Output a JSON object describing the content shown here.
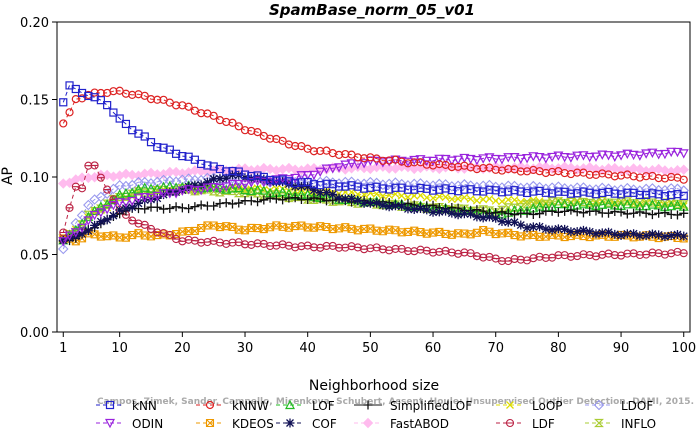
{
  "chart_data": {
    "type": "line",
    "title": "SpamBase_norm_05_v01",
    "xlabel": "Neighborhood size",
    "ylabel": "AP",
    "xlim": [
      0,
      101
    ],
    "ylim": [
      0,
      0.2
    ],
    "x_ticks": [
      1,
      10,
      20,
      30,
      40,
      50,
      60,
      70,
      80,
      90,
      100
    ],
    "y_ticks": [
      0.0,
      0.05,
      0.1,
      0.15,
      0.2
    ],
    "y_tick_labels": [
      "0.00",
      "0.05",
      "0.10",
      "0.15",
      "0.20"
    ],
    "grid": false,
    "legend_position": "bottom",
    "watermark": "Campos, Zimek, Sander, Campello, Micenkova, Schubert, Assent, Houle: Unsupervised Outlier Detection. DAMI, 2015.",
    "series": [
      {
        "name": "kNN",
        "color": "#2222cc",
        "marker": "square",
        "dash": "4,3",
        "keypoints": [
          [
            1,
            0.149
          ],
          [
            2,
            0.159
          ],
          [
            3,
            0.156
          ],
          [
            5,
            0.153
          ],
          [
            8,
            0.147
          ],
          [
            10,
            0.137
          ],
          [
            13,
            0.128
          ],
          [
            16,
            0.12
          ],
          [
            20,
            0.114
          ],
          [
            25,
            0.106
          ],
          [
            30,
            0.102
          ],
          [
            35,
            0.098
          ],
          [
            40,
            0.096
          ],
          [
            50,
            0.093
          ],
          [
            60,
            0.092
          ],
          [
            70,
            0.091
          ],
          [
            80,
            0.09
          ],
          [
            90,
            0.0895
          ],
          [
            100,
            0.088
          ]
        ]
      },
      {
        "name": "kNNW",
        "color": "#dd2222",
        "marker": "circle",
        "dash": "4,3",
        "keypoints": [
          [
            1,
            0.135
          ],
          [
            2,
            0.141
          ],
          [
            3,
            0.15
          ],
          [
            5,
            0.153
          ],
          [
            8,
            0.155
          ],
          [
            10,
            0.155
          ],
          [
            14,
            0.152
          ],
          [
            20,
            0.146
          ],
          [
            25,
            0.139
          ],
          [
            30,
            0.131
          ],
          [
            35,
            0.124
          ],
          [
            40,
            0.118
          ],
          [
            50,
            0.112
          ],
          [
            60,
            0.108
          ],
          [
            70,
            0.105
          ],
          [
            80,
            0.103
          ],
          [
            90,
            0.101
          ],
          [
            100,
            0.099
          ]
        ]
      },
      {
        "name": "LOF",
        "color": "#22bb22",
        "marker": "triangle-up",
        "dash": "4,3",
        "keypoints": [
          [
            1,
            0.06
          ],
          [
            3,
            0.065
          ],
          [
            5,
            0.075
          ],
          [
            8,
            0.083
          ],
          [
            10,
            0.088
          ],
          [
            13,
            0.092
          ],
          [
            16,
            0.093
          ],
          [
            20,
            0.094
          ],
          [
            25,
            0.093
          ],
          [
            30,
            0.092
          ],
          [
            35,
            0.09
          ],
          [
            40,
            0.088
          ],
          [
            50,
            0.084
          ],
          [
            60,
            0.08
          ],
          [
            70,
            0.076
          ],
          [
            75,
            0.079
          ],
          [
            80,
            0.082
          ],
          [
            90,
            0.082
          ],
          [
            100,
            0.081
          ]
        ]
      },
      {
        "name": "SimplifiedLOF",
        "color": "#111111",
        "marker": "plus",
        "dash": "",
        "keypoints": [
          [
            1,
            0.058
          ],
          [
            3,
            0.061
          ],
          [
            5,
            0.066
          ],
          [
            8,
            0.072
          ],
          [
            10,
            0.077
          ],
          [
            13,
            0.08
          ],
          [
            16,
            0.08
          ],
          [
            20,
            0.08
          ],
          [
            25,
            0.082
          ],
          [
            30,
            0.084
          ],
          [
            35,
            0.086
          ],
          [
            40,
            0.086
          ],
          [
            50,
            0.084
          ],
          [
            60,
            0.081
          ],
          [
            70,
            0.077
          ],
          [
            75,
            0.076
          ],
          [
            80,
            0.078
          ],
          [
            90,
            0.077
          ],
          [
            100,
            0.076
          ]
        ]
      },
      {
        "name": "LoOP",
        "color": "#dddd00",
        "marker": "x",
        "dash": "4,3",
        "keypoints": [
          [
            1,
            0.06
          ],
          [
            3,
            0.066
          ],
          [
            5,
            0.074
          ],
          [
            8,
            0.081
          ],
          [
            10,
            0.086
          ],
          [
            13,
            0.089
          ],
          [
            16,
            0.091
          ],
          [
            20,
            0.092
          ],
          [
            25,
            0.093
          ],
          [
            30,
            0.092
          ],
          [
            35,
            0.092
          ],
          [
            40,
            0.091
          ],
          [
            50,
            0.089
          ],
          [
            60,
            0.087
          ],
          [
            70,
            0.085
          ],
          [
            80,
            0.084
          ],
          [
            90,
            0.083
          ],
          [
            100,
            0.082
          ]
        ]
      },
      {
        "name": "LDOF",
        "color": "#9999ee",
        "marker": "diamond",
        "dash": "4,3",
        "keypoints": [
          [
            1,
            0.054
          ],
          [
            3,
            0.07
          ],
          [
            5,
            0.082
          ],
          [
            8,
            0.09
          ],
          [
            10,
            0.094
          ],
          [
            13,
            0.096
          ],
          [
            16,
            0.097
          ],
          [
            20,
            0.098
          ],
          [
            25,
            0.099
          ],
          [
            30,
            0.098
          ],
          [
            35,
            0.097
          ],
          [
            40,
            0.097
          ],
          [
            50,
            0.096
          ],
          [
            60,
            0.095
          ],
          [
            70,
            0.094
          ],
          [
            80,
            0.093
          ],
          [
            90,
            0.092
          ],
          [
            100,
            0.092
          ]
        ]
      },
      {
        "name": "ODIN",
        "color": "#9922dd",
        "marker": "triangle-down",
        "dash": "4,3",
        "keypoints": [
          [
            1,
            0.059
          ],
          [
            3,
            0.064
          ],
          [
            5,
            0.072
          ],
          [
            8,
            0.08
          ],
          [
            10,
            0.083
          ],
          [
            13,
            0.086
          ],
          [
            16,
            0.088
          ],
          [
            20,
            0.091
          ],
          [
            25,
            0.093
          ],
          [
            30,
            0.096
          ],
          [
            35,
            0.098
          ],
          [
            40,
            0.101
          ],
          [
            45,
            0.107
          ],
          [
            50,
            0.11
          ],
          [
            60,
            0.111
          ],
          [
            70,
            0.112
          ],
          [
            80,
            0.113
          ],
          [
            90,
            0.114
          ],
          [
            100,
            0.116
          ]
        ]
      },
      {
        "name": "KDEOS",
        "color": "#ee9900",
        "marker": "square-x",
        "dash": "4,3",
        "keypoints": [
          [
            1,
            0.06
          ],
          [
            3,
            0.059
          ],
          [
            5,
            0.063
          ],
          [
            8,
            0.062
          ],
          [
            10,
            0.061
          ],
          [
            13,
            0.063
          ],
          [
            16,
            0.062
          ],
          [
            20,
            0.064
          ],
          [
            25,
            0.069
          ],
          [
            30,
            0.066
          ],
          [
            35,
            0.068
          ],
          [
            40,
            0.068
          ],
          [
            45,
            0.067
          ],
          [
            50,
            0.066
          ],
          [
            60,
            0.064
          ],
          [
            65,
            0.063
          ],
          [
            68,
            0.065
          ],
          [
            70,
            0.064
          ],
          [
            75,
            0.062
          ],
          [
            80,
            0.062
          ],
          [
            90,
            0.062
          ],
          [
            100,
            0.061
          ]
        ]
      },
      {
        "name": "COF",
        "color": "#111155",
        "marker": "star",
        "dash": "4,3",
        "keypoints": [
          [
            1,
            0.06
          ],
          [
            3,
            0.061
          ],
          [
            5,
            0.066
          ],
          [
            8,
            0.073
          ],
          [
            10,
            0.078
          ],
          [
            13,
            0.083
          ],
          [
            16,
            0.087
          ],
          [
            20,
            0.092
          ],
          [
            25,
            0.098
          ],
          [
            28,
            0.101
          ],
          [
            30,
            0.1
          ],
          [
            35,
            0.097
          ],
          [
            40,
            0.093
          ],
          [
            45,
            0.087
          ],
          [
            50,
            0.083
          ],
          [
            60,
            0.078
          ],
          [
            65,
            0.076
          ],
          [
            70,
            0.073
          ],
          [
            75,
            0.068
          ],
          [
            80,
            0.066
          ],
          [
            90,
            0.063
          ],
          [
            100,
            0.062
          ]
        ]
      },
      {
        "name": "FastABOD",
        "color": "#ffbbee",
        "marker": "diamond-filled",
        "dash": "4,3",
        "keypoints": [
          [
            1,
            0.096
          ],
          [
            3,
            0.098
          ],
          [
            5,
            0.1
          ],
          [
            8,
            0.101
          ],
          [
            10,
            0.101
          ],
          [
            15,
            0.102
          ],
          [
            20,
            0.103
          ],
          [
            25,
            0.104
          ],
          [
            30,
            0.105
          ],
          [
            40,
            0.105
          ],
          [
            50,
            0.106
          ],
          [
            60,
            0.106
          ],
          [
            70,
            0.106
          ],
          [
            80,
            0.106
          ],
          [
            90,
            0.105
          ],
          [
            100,
            0.104
          ]
        ]
      },
      {
        "name": "LDF",
        "color": "#bb2244",
        "marker": "circle-line",
        "dash": "4,3",
        "keypoints": [
          [
            1,
            0.065
          ],
          [
            2,
            0.08
          ],
          [
            3,
            0.093
          ],
          [
            4,
            0.093
          ],
          [
            5,
            0.108
          ],
          [
            6,
            0.107
          ],
          [
            7,
            0.099
          ],
          [
            9,
            0.086
          ],
          [
            10,
            0.078
          ],
          [
            13,
            0.07
          ],
          [
            16,
            0.065
          ],
          [
            18,
            0.062
          ],
          [
            20,
            0.059
          ],
          [
            25,
            0.058
          ],
          [
            30,
            0.057
          ],
          [
            35,
            0.056
          ],
          [
            40,
            0.055
          ],
          [
            45,
            0.055
          ],
          [
            50,
            0.054
          ],
          [
            60,
            0.052
          ],
          [
            65,
            0.051
          ],
          [
            70,
            0.047
          ],
          [
            72,
            0.046
          ],
          [
            75,
            0.047
          ],
          [
            80,
            0.049
          ],
          [
            90,
            0.05
          ],
          [
            100,
            0.051
          ]
        ]
      },
      {
        "name": "INFLO",
        "color": "#aacc33",
        "marker": "hourglass",
        "dash": "4,3",
        "keypoints": [
          [
            1,
            0.06
          ],
          [
            3,
            0.065
          ],
          [
            5,
            0.075
          ],
          [
            8,
            0.083
          ],
          [
            10,
            0.087
          ],
          [
            13,
            0.09
          ],
          [
            16,
            0.091
          ],
          [
            20,
            0.092
          ],
          [
            25,
            0.091
          ],
          [
            30,
            0.09
          ],
          [
            35,
            0.088
          ],
          [
            40,
            0.086
          ],
          [
            50,
            0.083
          ],
          [
            60,
            0.08
          ],
          [
            70,
            0.078
          ],
          [
            75,
            0.082
          ],
          [
            80,
            0.084
          ],
          [
            90,
            0.084
          ],
          [
            100,
            0.083
          ]
        ]
      }
    ]
  }
}
